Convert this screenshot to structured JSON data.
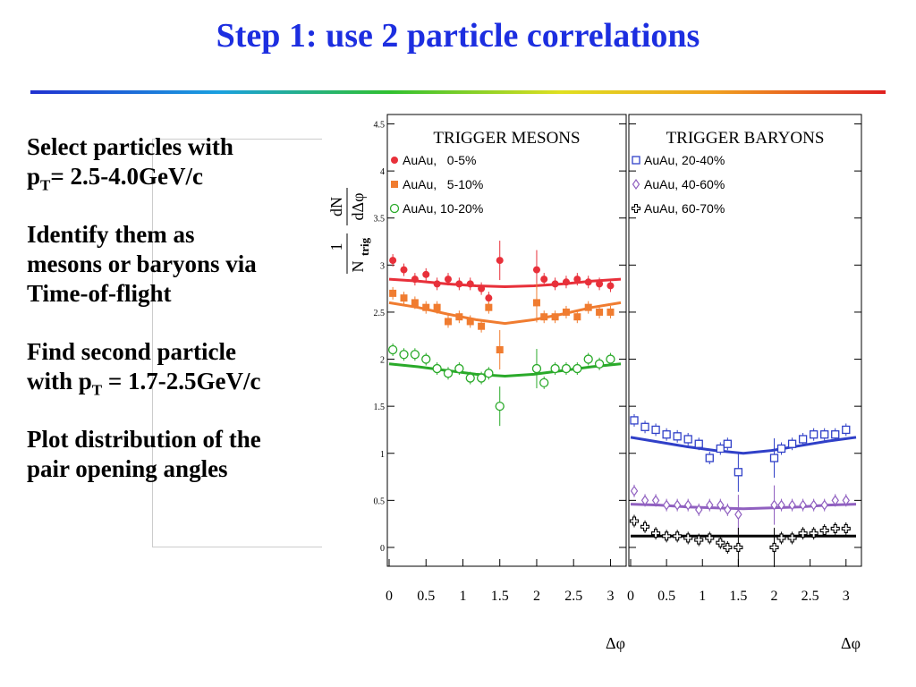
{
  "slide": {
    "title": "Step 1: use 2 particle correlations",
    "bullets": [
      {
        "text": "Select particles with",
        "line2_pre": "p",
        "line2_sub": "T",
        "line2_post": "= 2.5-4.0GeV/c"
      },
      {
        "line1": "Identify them as",
        "line2": "mesons or baryons via",
        "line3": "Time-of-flight"
      },
      {
        "line1": "Find second particle",
        "line2_pre": "with p",
        "line2_sub": "T",
        "line2_post": " = 1.7-2.5GeV/c"
      },
      {
        "line1": "Plot distribution of the",
        "line2": "pair opening angles"
      }
    ]
  },
  "chart_data": [
    {
      "type": "scatter",
      "title": "TRIGGER MESONS",
      "xlabel": "Δφ",
      "ylabel_num": "1",
      "ylabel_den": "N",
      "ylabel_den_sub": "trig",
      "ylabel_frac_num": "dN",
      "ylabel_frac_den": "dΔφ",
      "xlim": [
        0,
        3.14
      ],
      "ylim": [
        -0.2,
        4.6
      ],
      "xticks": [
        "0",
        "0.5",
        "1",
        "1.5",
        "2",
        "2.5",
        "3"
      ],
      "yticks": [
        "0",
        "0.5",
        "1",
        "1.5",
        "2",
        "2.5",
        "3",
        "3.5",
        "4",
        "4.5"
      ],
      "legend": [
        "AuAu,   0-5%",
        "AuAu,   5-10%",
        "AuAu, 10-20%"
      ],
      "series": [
        {
          "name": "AuAu,   0-5%",
          "color": "#e8303a",
          "marker": "circle-filled",
          "x": [
            0.05,
            0.2,
            0.35,
            0.5,
            0.65,
            0.8,
            0.95,
            1.1,
            1.25,
            1.35,
            1.5,
            2.0,
            2.1,
            2.25,
            2.4,
            2.55,
            2.7,
            2.85,
            3.0
          ],
          "y": [
            3.05,
            2.95,
            2.85,
            2.9,
            2.8,
            2.85,
            2.8,
            2.8,
            2.75,
            2.65,
            3.05,
            2.95,
            2.85,
            2.8,
            2.82,
            2.85,
            2.82,
            2.8,
            2.78
          ],
          "fit": [
            2.85,
            2.83,
            2.8,
            2.78,
            2.77,
            2.78,
            2.8,
            2.83,
            2.85
          ]
        },
        {
          "name": "AuAu,   5-10%",
          "color": "#f07c30",
          "marker": "square-filled",
          "x": [
            0.05,
            0.2,
            0.35,
            0.5,
            0.65,
            0.8,
            0.95,
            1.1,
            1.25,
            1.35,
            1.5,
            2.0,
            2.1,
            2.25,
            2.4,
            2.55,
            2.7,
            2.85,
            3.0
          ],
          "y": [
            2.7,
            2.65,
            2.6,
            2.55,
            2.55,
            2.4,
            2.45,
            2.4,
            2.35,
            2.55,
            2.1,
            2.6,
            2.45,
            2.45,
            2.5,
            2.45,
            2.55,
            2.5,
            2.5
          ],
          "fit": [
            2.6,
            2.55,
            2.48,
            2.42,
            2.38,
            2.42,
            2.48,
            2.55,
            2.6
          ]
        },
        {
          "name": "AuAu, 10-20%",
          "color": "#2aaa2a",
          "marker": "circle-open",
          "x": [
            0.05,
            0.2,
            0.35,
            0.5,
            0.65,
            0.8,
            0.95,
            1.1,
            1.25,
            1.35,
            1.5,
            2.0,
            2.1,
            2.25,
            2.4,
            2.55,
            2.7,
            2.85,
            3.0
          ],
          "y": [
            2.1,
            2.05,
            2.05,
            2.0,
            1.9,
            1.85,
            1.9,
            1.8,
            1.8,
            1.85,
            1.5,
            1.9,
            1.75,
            1.9,
            1.9,
            1.9,
            2.0,
            1.95,
            2.0
          ],
          "fit": [
            1.95,
            1.92,
            1.88,
            1.84,
            1.82,
            1.84,
            1.88,
            1.92,
            1.95
          ]
        }
      ]
    },
    {
      "type": "scatter",
      "title": "TRIGGER BARYONS",
      "xlabel": "Δφ",
      "xlim": [
        0,
        3.14
      ],
      "ylim": [
        -0.2,
        4.6
      ],
      "xticks": [
        "0",
        "0.5",
        "1",
        "1.5",
        "2",
        "2.5",
        "3"
      ],
      "legend": [
        "AuAu, 20-40%",
        "AuAu, 40-60%",
        "AuAu, 60-70%"
      ],
      "series": [
        {
          "name": "AuAu, 20-40%",
          "color": "#3040c8",
          "marker": "square-open",
          "x": [
            0.05,
            0.2,
            0.35,
            0.5,
            0.65,
            0.8,
            0.95,
            1.1,
            1.25,
            1.35,
            1.5,
            2.0,
            2.1,
            2.25,
            2.4,
            2.55,
            2.7,
            2.85,
            3.0
          ],
          "y": [
            1.35,
            1.28,
            1.25,
            1.2,
            1.18,
            1.15,
            1.1,
            0.95,
            1.05,
            1.1,
            0.8,
            0.95,
            1.05,
            1.1,
            1.15,
            1.2,
            1.2,
            1.2,
            1.25
          ],
          "fit": [
            1.17,
            1.12,
            1.07,
            1.03,
            1.0,
            1.03,
            1.08,
            1.13,
            1.17
          ]
        },
        {
          "name": "AuAu, 40-60%",
          "color": "#9060c0",
          "marker": "diamond-open",
          "x": [
            0.05,
            0.2,
            0.35,
            0.5,
            0.65,
            0.8,
            0.95,
            1.1,
            1.25,
            1.35,
            1.5,
            2.0,
            2.1,
            2.25,
            2.4,
            2.55,
            2.7,
            2.85,
            3.0
          ],
          "y": [
            0.6,
            0.5,
            0.5,
            0.45,
            0.45,
            0.45,
            0.4,
            0.45,
            0.45,
            0.4,
            0.35,
            0.45,
            0.45,
            0.45,
            0.45,
            0.45,
            0.45,
            0.5,
            0.5
          ],
          "fit": [
            0.46,
            0.45,
            0.43,
            0.42,
            0.41,
            0.42,
            0.43,
            0.45,
            0.46
          ]
        },
        {
          "name": "AuAu, 60-70%",
          "color": "#000000",
          "marker": "cross-open",
          "x": [
            0.05,
            0.2,
            0.35,
            0.5,
            0.65,
            0.8,
            0.95,
            1.1,
            1.25,
            1.35,
            1.5,
            2.0,
            2.1,
            2.25,
            2.4,
            2.55,
            2.7,
            2.85,
            3.0
          ],
          "y": [
            0.28,
            0.22,
            0.15,
            0.12,
            0.12,
            0.1,
            0.08,
            0.1,
            0.05,
            0.0,
            0.0,
            0.0,
            0.1,
            0.1,
            0.15,
            0.15,
            0.18,
            0.2,
            0.2
          ],
          "fit": [
            0.12,
            0.12,
            0.12,
            0.12,
            0.12,
            0.12,
            0.12,
            0.12,
            0.12
          ]
        }
      ]
    }
  ]
}
